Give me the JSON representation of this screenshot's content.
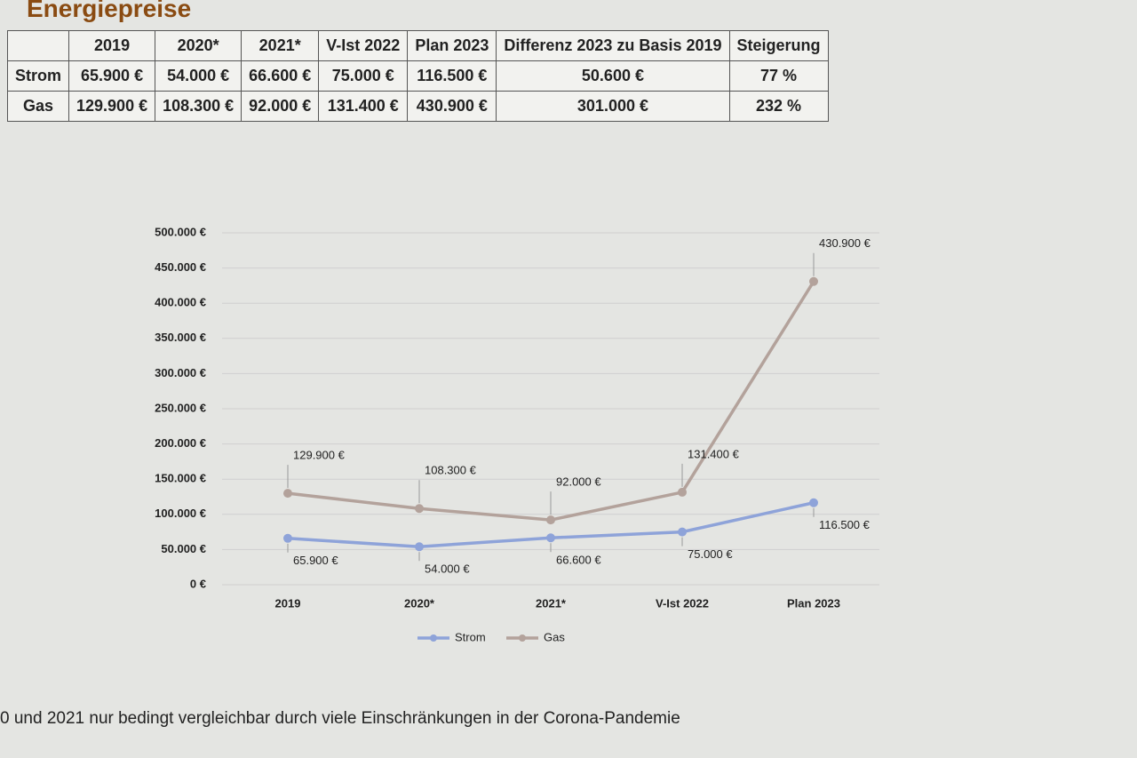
{
  "header": {
    "title": "Energiepreise"
  },
  "table": {
    "columns": [
      "",
      "2019",
      "2020*",
      "2021*",
      "V-Ist 2022",
      "Plan 2023",
      "Differenz 2023 zu Basis 2019",
      "Steigerung"
    ],
    "rows": [
      [
        "Strom",
        "65.900 €",
        "54.000 €",
        "66.600 €",
        "75.000 €",
        "116.500 €",
        "50.600 €",
        "77 %"
      ],
      [
        "Gas",
        "129.900 €",
        "108.300 €",
        "92.000 €",
        "131.400 €",
        "430.900 €",
        "301.000 €",
        "232 %"
      ]
    ]
  },
  "chart_data": {
    "type": "line",
    "categories": [
      "2019",
      "2020*",
      "2021*",
      "V-Ist 2022",
      "Plan 2023"
    ],
    "series": [
      {
        "name": "Strom",
        "color": "#8ea3d9",
        "values": [
          65900,
          54000,
          66600,
          75000,
          116500
        ],
        "value_labels": [
          "65.900 €",
          "54.000 €",
          "66.600 €",
          "75.000 €",
          "116.500 €"
        ]
      },
      {
        "name": "Gas",
        "color": "#b3a29b",
        "values": [
          129900,
          108300,
          92000,
          131400,
          430900
        ],
        "value_labels": [
          "129.900 €",
          "108.300 €",
          "92.000 €",
          "131.400 €",
          "430.900 €"
        ]
      }
    ],
    "ylim": [
      0,
      500000
    ],
    "yticks": [
      {
        "value": 0,
        "label": "0 €"
      },
      {
        "value": 50000,
        "label": "50.000 €"
      },
      {
        "value": 100000,
        "label": "100.000 €"
      },
      {
        "value": 150000,
        "label": "150.000 €"
      },
      {
        "value": 200000,
        "label": "200.000 €"
      },
      {
        "value": 250000,
        "label": "250.000 €"
      },
      {
        "value": 300000,
        "label": "300.000 €"
      },
      {
        "value": 350000,
        "label": "350.000 €"
      },
      {
        "value": 400000,
        "label": "400.000 €"
      },
      {
        "value": 450000,
        "label": "450.000 €"
      },
      {
        "value": 500000,
        "label": "500.000 €"
      }
    ],
    "grid": true,
    "legend": "bottom"
  },
  "footnote": "0 und 2021 nur bedingt vergleichbar durch viele Einschränkungen in der Corona-Pandemie"
}
